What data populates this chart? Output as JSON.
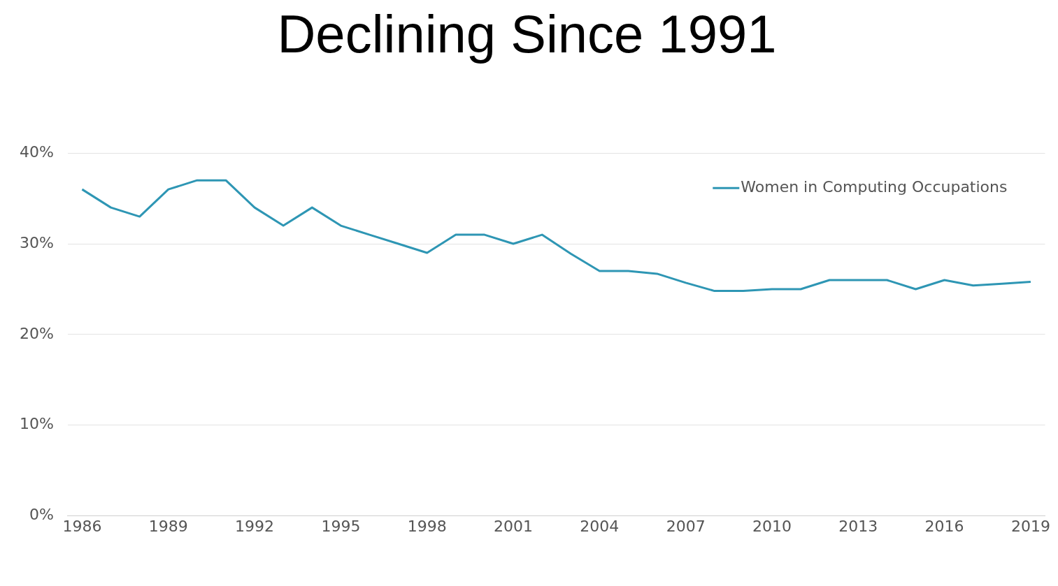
{
  "chart_data": {
    "type": "line",
    "title": "Declining Since 1991",
    "x": [
      1986,
      1987,
      1988,
      1989,
      1990,
      1991,
      1992,
      1993,
      1994,
      1995,
      1996,
      1997,
      1998,
      1999,
      2000,
      2001,
      2002,
      2003,
      2004,
      2005,
      2006,
      2007,
      2008,
      2009,
      2010,
      2011,
      2012,
      2013,
      2014,
      2015,
      2016,
      2017,
      2018,
      2019
    ],
    "series": [
      {
        "name": "Women in Computing Occupations",
        "color": "#2e96b4",
        "values": [
          36,
          34,
          33,
          36,
          37,
          37,
          34,
          32,
          34,
          32,
          31,
          30,
          29,
          31,
          31,
          30,
          31,
          28.9,
          27,
          27,
          26.7,
          25.7,
          24.8,
          24.8,
          25,
          25,
          26,
          26,
          26,
          25,
          26,
          25.4,
          25.6,
          25.8
        ]
      }
    ],
    "xlim": [
      1985.5,
      2019.5
    ],
    "xticks": [
      1986,
      1989,
      1992,
      1995,
      1998,
      2001,
      2004,
      2007,
      2010,
      2013,
      2016,
      2019
    ],
    "ylim": [
      0,
      40
    ],
    "yticks": [
      {
        "value": 0,
        "label": "0%"
      },
      {
        "value": 10,
        "label": "10%"
      },
      {
        "value": 20,
        "label": "20%"
      },
      {
        "value": 30,
        "label": "30%"
      },
      {
        "value": 40,
        "label": "40%"
      }
    ],
    "grid": "y",
    "legend": "top right",
    "marker": "none",
    "line_style": "solid"
  }
}
